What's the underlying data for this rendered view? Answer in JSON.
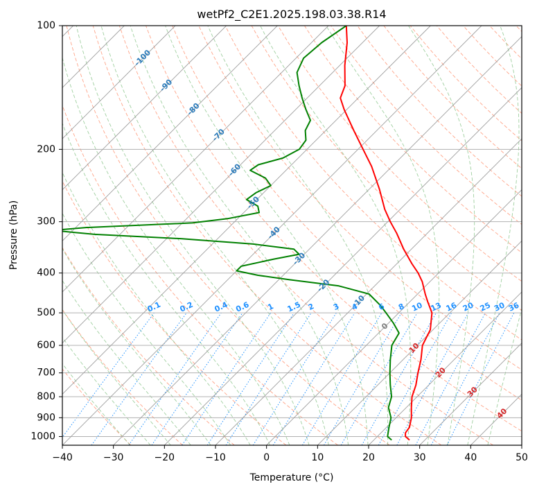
{
  "chart_data": {
    "type": "line",
    "title": "wetPf2_C2E1.2025.198.03.38.R14",
    "xlabel": "Temperature (°C)",
    "ylabel": "Pressure (hPa)",
    "xlim": [
      -40,
      50
    ],
    "ylim": [
      1050,
      100
    ],
    "yscale": "log",
    "x_ticks": [
      "−40",
      "−30",
      "−20",
      "−10",
      "0",
      "10",
      "20",
      "30",
      "40",
      "50"
    ],
    "x_tick_values": [
      -40,
      -30,
      -20,
      -10,
      0,
      10,
      20,
      30,
      40,
      50
    ],
    "y_ticks": [
      "100",
      "200",
      "300",
      "400",
      "500",
      "600",
      "700",
      "800",
      "900",
      "1000"
    ],
    "y_tick_values": [
      100,
      200,
      300,
      400,
      500,
      600,
      700,
      800,
      900,
      1000
    ],
    "grid": true,
    "skew": 45,
    "series": [
      {
        "color": "#ff0000",
        "points": [
          {
            "p": 1020,
            "t": 27.0
          },
          {
            "p": 1000,
            "t": 25.5
          },
          {
            "p": 980,
            "t": 24.8
          },
          {
            "p": 950,
            "t": 24.5
          },
          {
            "p": 900,
            "t": 23.0
          },
          {
            "p": 850,
            "t": 21.0
          },
          {
            "p": 800,
            "t": 19.0
          },
          {
            "p": 750,
            "t": 17.5
          },
          {
            "p": 700,
            "t": 15.5
          },
          {
            "p": 650,
            "t": 13.5
          },
          {
            "p": 600,
            "t": 11.0
          },
          {
            "p": 550,
            "t": 9.5
          },
          {
            "p": 500,
            "t": 6.5
          },
          {
            "p": 470,
            "t": 3.5
          },
          {
            "p": 450,
            "t": 1.5
          },
          {
            "p": 420,
            "t": -1.5
          },
          {
            "p": 400,
            "t": -4.0
          },
          {
            "p": 380,
            "t": -7.0
          },
          {
            "p": 350,
            "t": -11.5
          },
          {
            "p": 320,
            "t": -16.0
          },
          {
            "p": 300,
            "t": -19.5
          },
          {
            "p": 280,
            "t": -23.0
          },
          {
            "p": 250,
            "t": -28.0
          },
          {
            "p": 220,
            "t": -34.0
          },
          {
            "p": 200,
            "t": -39.0
          },
          {
            "p": 180,
            "t": -44.5
          },
          {
            "p": 160,
            "t": -50.5
          },
          {
            "p": 150,
            "t": -53.5
          },
          {
            "p": 140,
            "t": -55.0
          },
          {
            "p": 125,
            "t": -59.0
          },
          {
            "p": 110,
            "t": -63.0
          },
          {
            "p": 100,
            "t": -66.5
          }
        ]
      },
      {
        "color": "#008000",
        "points": [
          {
            "p": 1020,
            "t": 23.5
          },
          {
            "p": 1000,
            "t": 22.0
          },
          {
            "p": 950,
            "t": 20.5
          },
          {
            "p": 900,
            "t": 19.0
          },
          {
            "p": 850,
            "t": 16.5
          },
          {
            "p": 800,
            "t": 15.0
          },
          {
            "p": 750,
            "t": 12.5
          },
          {
            "p": 700,
            "t": 10.0
          },
          {
            "p": 650,
            "t": 7.5
          },
          {
            "p": 600,
            "t": 5.0
          },
          {
            "p": 560,
            "t": 4.0
          },
          {
            "p": 530,
            "t": 1.0
          },
          {
            "p": 500,
            "t": -2.5
          },
          {
            "p": 480,
            "t": -5.0
          },
          {
            "p": 450,
            "t": -9.5
          },
          {
            "p": 430,
            "t": -17.0
          },
          {
            "p": 415,
            "t": -28.0
          },
          {
            "p": 405,
            "t": -35.0
          },
          {
            "p": 395,
            "t": -40.0
          },
          {
            "p": 385,
            "t": -40.0
          },
          {
            "p": 370,
            "t": -35.0
          },
          {
            "p": 360,
            "t": -31.0
          },
          {
            "p": 350,
            "t": -33.0
          },
          {
            "p": 340,
            "t": -42.0
          },
          {
            "p": 330,
            "t": -57.0
          },
          {
            "p": 322,
            "t": -75.0
          },
          {
            "p": 315,
            "t": -84.0
          },
          {
            "p": 310,
            "t": -78.0
          },
          {
            "p": 302,
            "t": -58.0
          },
          {
            "p": 295,
            "t": -52.0
          },
          {
            "p": 285,
            "t": -47.0
          },
          {
            "p": 275,
            "t": -48.5
          },
          {
            "p": 265,
            "t": -52.0
          },
          {
            "p": 255,
            "t": -51.5
          },
          {
            "p": 245,
            "t": -50.0
          },
          {
            "p": 235,
            "t": -52.5
          },
          {
            "p": 225,
            "t": -57.0
          },
          {
            "p": 218,
            "t": -56.5
          },
          {
            "p": 210,
            "t": -53.0
          },
          {
            "p": 200,
            "t": -51.5
          },
          {
            "p": 190,
            "t": -52.0
          },
          {
            "p": 180,
            "t": -54.0
          },
          {
            "p": 170,
            "t": -55.0
          },
          {
            "p": 160,
            "t": -58.0
          },
          {
            "p": 150,
            "t": -61.0
          },
          {
            "p": 140,
            "t": -64.0
          },
          {
            "p": 130,
            "t": -67.0
          },
          {
            "p": 120,
            "t": -68.5
          },
          {
            "p": 110,
            "t": -68.0
          },
          {
            "p": 100,
            "t": -66.5
          }
        ]
      }
    ],
    "isotherm_labels": [
      "-100",
      "-90",
      "-80",
      "-70",
      "-60",
      "-50",
      "-40",
      "-30",
      "-20",
      "-10"
    ],
    "isotherm_label_values": [
      -100,
      -90,
      -80,
      -70,
      -60,
      -50,
      -40,
      -30,
      -20,
      -10
    ],
    "mixing_ratio_labels": [
      "0.1",
      "0.2",
      "0.4",
      "0.6",
      "1",
      "1.5",
      "2",
      "3",
      "4",
      "6",
      "8",
      "10",
      "13",
      "16",
      "20",
      "25",
      "30",
      "36"
    ],
    "mixing_ratio_values": [
      0.1,
      0.2,
      0.4,
      0.6,
      1,
      1.5,
      2,
      3,
      4,
      6,
      8,
      10,
      13,
      16,
      20,
      25,
      30,
      36
    ],
    "warm_isotherm_labels": [
      "0",
      "10",
      "20",
      "30",
      "40"
    ],
    "warm_isotherm_values": [
      0,
      10,
      20,
      30,
      40
    ],
    "colors": {
      "temperature": "#ff0000",
      "dewpoint": "#008000",
      "dry_adiabat": "#ff8c69",
      "moist_adiabat": "#7fbf7f",
      "mixing_ratio": "#1e90ff",
      "isotherm": "#9e9e9e",
      "isotherm_label_cold": "#2b7bba",
      "isotherm_label_warm": "#d62728"
    }
  }
}
